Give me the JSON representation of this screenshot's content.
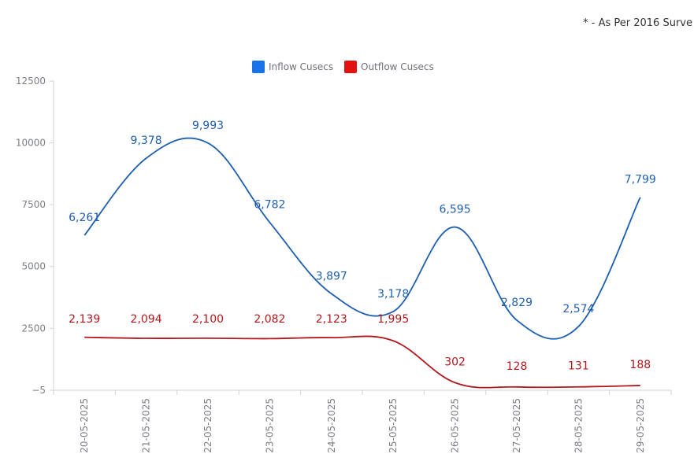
{
  "note": "* - As Per 2016 Surve",
  "chart_data": {
    "type": "line",
    "categories": [
      "20-05-2025",
      "21-05-2025",
      "22-05-2025",
      "23-05-2025",
      "24-05-2025",
      "25-05-2025",
      "26-05-2025",
      "27-05-2025",
      "28-05-2025",
      "29-05-2025"
    ],
    "series": [
      {
        "name": "Inflow Cusecs",
        "color": "#1f5fb0",
        "legend_color": "#1a73e8",
        "values": [
          6261,
          9378,
          9993,
          6782,
          3897,
          3178,
          6595,
          2829,
          2574,
          7799
        ],
        "labels": [
          "6,261",
          "9,378",
          "9,993",
          "6,782",
          "3,897",
          "3,178",
          "6,595",
          "2,829",
          "2,574",
          "7,799"
        ]
      },
      {
        "name": "Outflow Cusecs",
        "color": "#b3181d",
        "legend_color": "#e31212",
        "values": [
          2139,
          2094,
          2100,
          2082,
          2123,
          1995,
          302,
          128,
          131,
          188
        ],
        "labels": [
          "2,139",
          "2,094",
          "2,100",
          "2,082",
          "2,123",
          "1,995",
          "302",
          "128",
          "131",
          "188"
        ]
      }
    ],
    "yticks": [
      -5,
      2500,
      5000,
      7500,
      10000,
      12500
    ],
    "ytick_labels": [
      "−5",
      "2500",
      "5000",
      "7500",
      "10000",
      "12500"
    ],
    "ylim": [
      -5,
      12500
    ],
    "legend_position": "top-center",
    "grid": false
  }
}
